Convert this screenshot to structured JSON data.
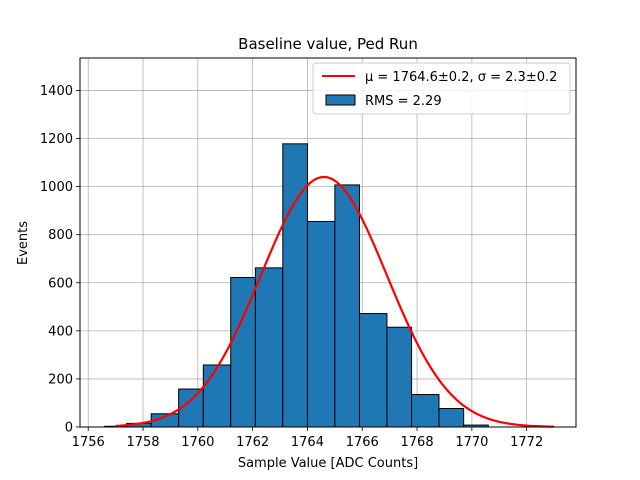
{
  "chart_data": {
    "type": "bar",
    "title": "Baseline value, Ped Run",
    "xlabel": "Sample Value [ADC Counts]",
    "ylabel": "Events",
    "xlim": [
      1755.7,
      1773.8
    ],
    "ylim": [
      0,
      1535
    ],
    "xticks": [
      1756,
      1758,
      1760,
      1762,
      1764,
      1766,
      1768,
      1770,
      1772
    ],
    "yticks": [
      0,
      200,
      400,
      600,
      800,
      1000,
      1200,
      1400
    ],
    "grid": true,
    "legend_position": "top-right",
    "colors": {
      "bar": "#1f77b4",
      "fit": "#ff0000",
      "edge": "#000000",
      "grid": "#b0b0b0"
    },
    "histogram": {
      "name": "RMS = 2.29",
      "bins": [
        {
          "x0": 1756.6,
          "x1": 1757.4,
          "count": 3
        },
        {
          "x0": 1757.4,
          "x1": 1758.3,
          "count": 15
        },
        {
          "x0": 1758.3,
          "x1": 1759.3,
          "count": 55
        },
        {
          "x0": 1759.3,
          "x1": 1760.2,
          "count": 158
        },
        {
          "x0": 1760.2,
          "x1": 1761.2,
          "count": 258
        },
        {
          "x0": 1761.2,
          "x1": 1762.1,
          "count": 622
        },
        {
          "x0": 1762.1,
          "x1": 1763.1,
          "count": 662
        },
        {
          "x0": 1763.1,
          "x1": 1764.0,
          "count": 1178
        },
        {
          "x0": 1764.0,
          "x1": 1765.0,
          "count": 855
        },
        {
          "x0": 1765.0,
          "x1": 1765.9,
          "count": 1007
        },
        {
          "x0": 1765.9,
          "x1": 1766.9,
          "count": 472
        },
        {
          "x0": 1766.9,
          "x1": 1767.8,
          "count": 415
        },
        {
          "x0": 1767.8,
          "x1": 1768.8,
          "count": 135
        },
        {
          "x0": 1768.8,
          "x1": 1769.7,
          "count": 77
        },
        {
          "x0": 1769.7,
          "x1": 1770.6,
          "count": 8
        }
      ]
    },
    "fit": {
      "name": "μ = 1764.6±0.2, σ = 2.3±0.2",
      "type": "gaussian",
      "mu": 1764.6,
      "sigma": 2.3,
      "amplitude": 1040,
      "x_range": [
        1757.0,
        1773.0
      ]
    }
  }
}
